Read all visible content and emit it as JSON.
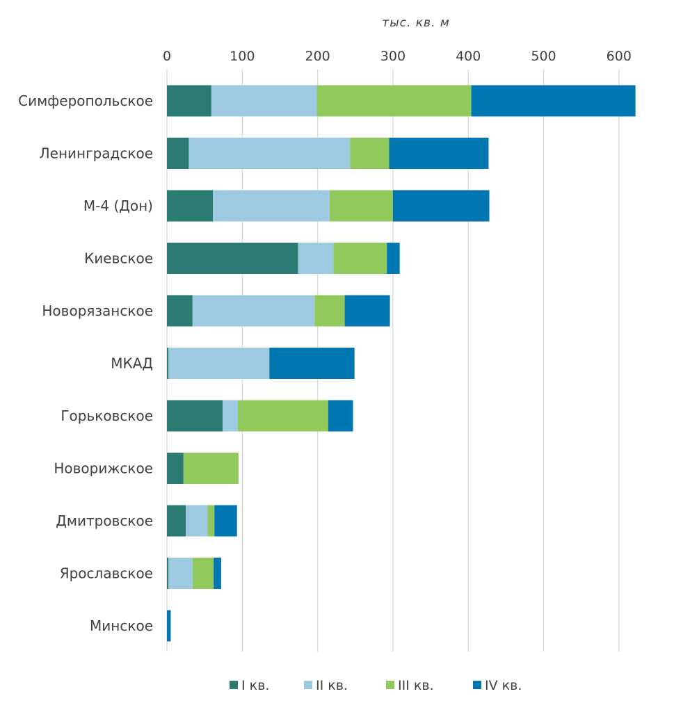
{
  "chart_data": {
    "type": "bar",
    "orientation": "horizontal",
    "stacked": true,
    "title": "",
    "unit_label": "тыс. кв. м",
    "xlim": [
      0,
      620
    ],
    "ticks": [
      0,
      100,
      200,
      300,
      400,
      500,
      600
    ],
    "tick_labels": [
      "0",
      "100",
      "200",
      "300",
      "400",
      "500",
      "600"
    ],
    "grid": true,
    "legend_position": "bottom",
    "categories": [
      "Симферопольское",
      "Ленинградское",
      "М-4 (Дон)",
      "Киевское",
      "Новорязанское",
      "МКАД",
      "Горьковское",
      "Новорижское",
      "Дмитровское",
      "Ярославское",
      "Минское"
    ],
    "series": [
      {
        "name": "I кв.",
        "color": "#2b7b73",
        "values": [
          59,
          29,
          61,
          174,
          34,
          2,
          74,
          22,
          25,
          2,
          0
        ]
      },
      {
        "name": "II кв.",
        "color": "#9ecae1",
        "values": [
          140,
          214,
          155,
          47,
          162,
          134,
          20,
          0,
          29,
          32,
          0
        ]
      },
      {
        "name": "III кв.",
        "color": "#92c95c",
        "values": [
          205,
          52,
          84,
          71,
          40,
          0,
          120,
          73,
          9,
          28,
          0
        ]
      },
      {
        "name": "IV кв.",
        "color": "#0077b0",
        "values": [
          218,
          132,
          128,
          17,
          60,
          113,
          33,
          0,
          30,
          10,
          5
        ]
      }
    ]
  }
}
